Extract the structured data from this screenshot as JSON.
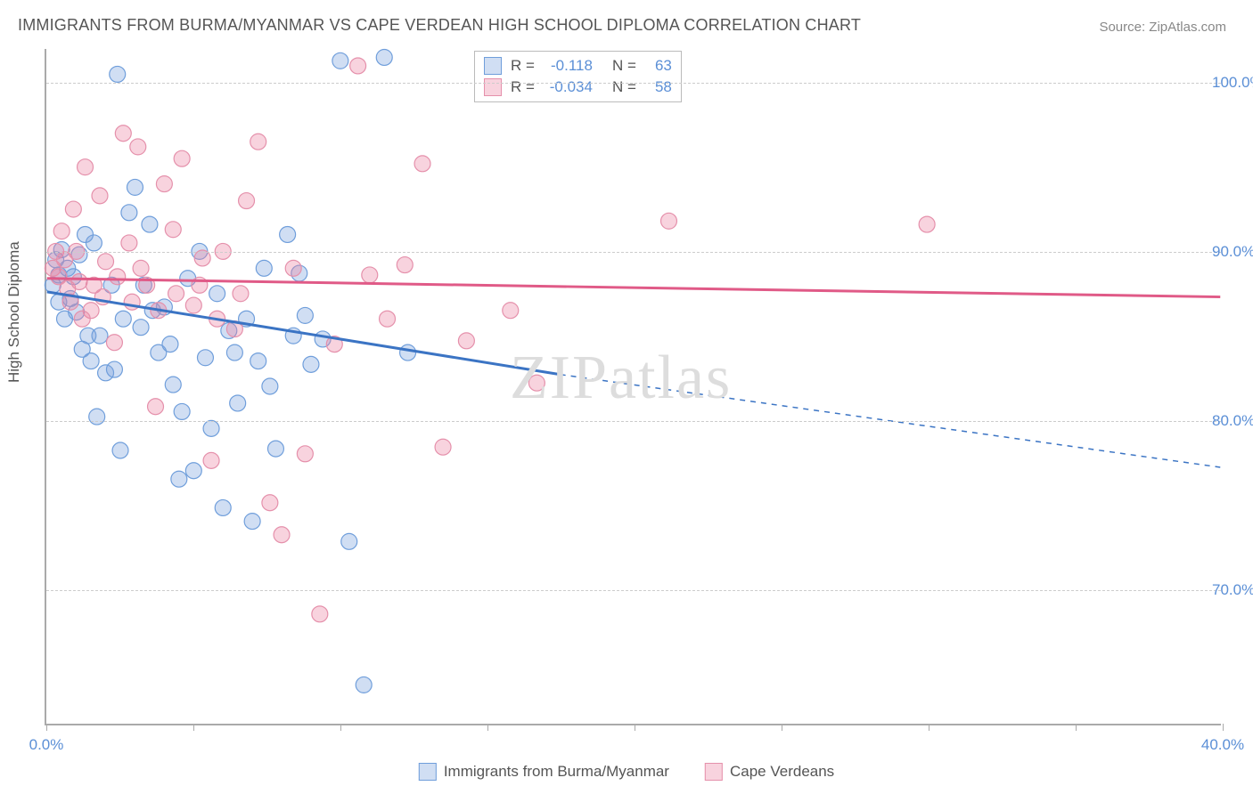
{
  "title": "IMMIGRANTS FROM BURMA/MYANMAR VS CAPE VERDEAN HIGH SCHOOL DIPLOMA CORRELATION CHART",
  "source": "Source: ZipAtlas.com",
  "yaxis_title": "High School Diploma",
  "watermark": {
    "zip": "ZIP",
    "atlas": "atlas"
  },
  "chart": {
    "type": "scatter-regression",
    "x": {
      "min": 0.0,
      "max": 40.0,
      "ticks_pct": [
        0,
        5,
        10,
        15,
        20,
        25,
        30,
        35,
        40
      ],
      "labels": [
        "0.0%",
        "",
        "",
        "",
        "",
        "",
        "",
        "",
        "40.0%"
      ]
    },
    "y": {
      "min": 62.0,
      "max": 102.0,
      "grid_at": [
        70,
        80,
        90,
        100
      ],
      "labels": [
        "70.0%",
        "80.0%",
        "90.0%",
        "100.0%"
      ]
    },
    "background": "#ffffff",
    "grid_color": "#cccccc",
    "axis_color": "#aaaaaa",
    "point_radius": 9,
    "point_stroke_width": 1.2,
    "series": [
      {
        "key": "burma",
        "label": "Immigrants from Burma/Myanmar",
        "fill": "rgba(120,160,220,0.35)",
        "stroke": "#6f9edb",
        "line_color": "#3b74c4",
        "points": [
          [
            0.3,
            89.5
          ],
          [
            0.5,
            90.1
          ],
          [
            0.4,
            88.6
          ],
          [
            0.8,
            87.2
          ],
          [
            1.0,
            86.4
          ],
          [
            1.1,
            89.8
          ],
          [
            1.4,
            85.0
          ],
          [
            1.5,
            83.5
          ],
          [
            1.6,
            90.5
          ],
          [
            1.7,
            80.2
          ],
          [
            2.0,
            82.8
          ],
          [
            2.2,
            88.0
          ],
          [
            2.4,
            100.5
          ],
          [
            2.5,
            78.2
          ],
          [
            2.8,
            92.3
          ],
          [
            3.0,
            93.8
          ],
          [
            3.2,
            85.5
          ],
          [
            3.5,
            91.6
          ],
          [
            3.8,
            84.0
          ],
          [
            4.0,
            86.7
          ],
          [
            4.3,
            82.1
          ],
          [
            4.5,
            76.5
          ],
          [
            4.8,
            88.4
          ],
          [
            5.0,
            77.0
          ],
          [
            5.2,
            90.0
          ],
          [
            5.6,
            79.5
          ],
          [
            6.0,
            74.8
          ],
          [
            6.2,
            85.3
          ],
          [
            6.5,
            81.0
          ],
          [
            7.0,
            74.0
          ],
          [
            7.4,
            89.0
          ],
          [
            7.8,
            78.3
          ],
          [
            8.2,
            91.0
          ],
          [
            8.6,
            88.7
          ],
          [
            9.0,
            83.3
          ],
          [
            9.4,
            84.8
          ],
          [
            10.0,
            101.3
          ],
          [
            10.3,
            72.8
          ],
          [
            10.8,
            64.3
          ],
          [
            11.5,
            101.5
          ],
          [
            0.2,
            88.0
          ],
          [
            0.4,
            87.0
          ],
          [
            0.6,
            86.0
          ],
          [
            0.7,
            89.0
          ],
          [
            0.9,
            88.5
          ],
          [
            1.2,
            84.2
          ],
          [
            1.3,
            91.0
          ],
          [
            1.8,
            85.0
          ],
          [
            2.3,
            83.0
          ],
          [
            2.6,
            86.0
          ],
          [
            3.3,
            88.0
          ],
          [
            3.6,
            86.5
          ],
          [
            4.2,
            84.5
          ],
          [
            4.6,
            80.5
          ],
          [
            5.4,
            83.7
          ],
          [
            5.8,
            87.5
          ],
          [
            6.4,
            84.0
          ],
          [
            6.8,
            86.0
          ],
          [
            7.2,
            83.5
          ],
          [
            7.6,
            82.0
          ],
          [
            8.4,
            85.0
          ],
          [
            8.8,
            86.2
          ],
          [
            12.3,
            84.0
          ]
        ],
        "regression": {
          "x0": 0,
          "y0": 87.6,
          "x1_solid": 17.5,
          "y1_solid": 82.7,
          "x1_dashed": 40,
          "y1_dashed": 77.2
        }
      },
      {
        "key": "cape",
        "label": "Cape Verdeans",
        "fill": "rgba(235,130,160,0.35)",
        "stroke": "#e590ab",
        "line_color": "#e05a87",
        "points": [
          [
            0.2,
            89.0
          ],
          [
            0.3,
            90.0
          ],
          [
            0.5,
            91.2
          ],
          [
            0.7,
            87.8
          ],
          [
            0.9,
            92.5
          ],
          [
            1.1,
            88.2
          ],
          [
            1.3,
            95.0
          ],
          [
            1.5,
            86.5
          ],
          [
            1.8,
            93.3
          ],
          [
            2.0,
            89.4
          ],
          [
            2.3,
            84.6
          ],
          [
            2.6,
            97.0
          ],
          [
            2.8,
            90.5
          ],
          [
            3.1,
            96.2
          ],
          [
            3.4,
            88.0
          ],
          [
            3.7,
            80.8
          ],
          [
            4.0,
            94.0
          ],
          [
            4.3,
            91.3
          ],
          [
            4.6,
            95.5
          ],
          [
            5.0,
            86.8
          ],
          [
            5.3,
            89.6
          ],
          [
            5.6,
            77.6
          ],
          [
            6.0,
            90.0
          ],
          [
            6.4,
            85.4
          ],
          [
            6.8,
            93.0
          ],
          [
            7.2,
            96.5
          ],
          [
            7.6,
            75.1
          ],
          [
            8.0,
            73.2
          ],
          [
            8.4,
            89.0
          ],
          [
            8.8,
            78.0
          ],
          [
            9.3,
            68.5
          ],
          [
            9.8,
            84.5
          ],
          [
            10.6,
            101.0
          ],
          [
            11.0,
            88.6
          ],
          [
            11.6,
            86.0
          ],
          [
            12.2,
            89.2
          ],
          [
            12.8,
            95.2
          ],
          [
            13.5,
            78.4
          ],
          [
            14.3,
            84.7
          ],
          [
            15.8,
            86.5
          ],
          [
            16.7,
            82.2
          ],
          [
            0.4,
            88.5
          ],
          [
            0.6,
            89.5
          ],
          [
            0.8,
            87.0
          ],
          [
            1.0,
            90.0
          ],
          [
            1.2,
            86.0
          ],
          [
            1.6,
            88.0
          ],
          [
            1.9,
            87.3
          ],
          [
            2.4,
            88.5
          ],
          [
            2.9,
            87.0
          ],
          [
            3.2,
            89.0
          ],
          [
            3.8,
            86.5
          ],
          [
            4.4,
            87.5
          ],
          [
            5.2,
            88.0
          ],
          [
            5.8,
            86.0
          ],
          [
            6.6,
            87.5
          ],
          [
            21.2,
            91.8
          ],
          [
            30.0,
            91.6
          ]
        ],
        "regression": {
          "x0": 0,
          "y0": 88.4,
          "x1_solid": 40,
          "y1_solid": 87.3
        }
      }
    ]
  },
  "legend_top": {
    "rows": [
      {
        "series": "burma",
        "r_label": "R = ",
        "r": "-0.118",
        "n_label": "N = ",
        "n": "63"
      },
      {
        "series": "cape",
        "r_label": "R = ",
        "r": "-0.034",
        "n_label": "N = ",
        "n": "58"
      }
    ]
  },
  "legend_bottom": [
    {
      "series": "burma"
    },
    {
      "series": "cape"
    }
  ]
}
